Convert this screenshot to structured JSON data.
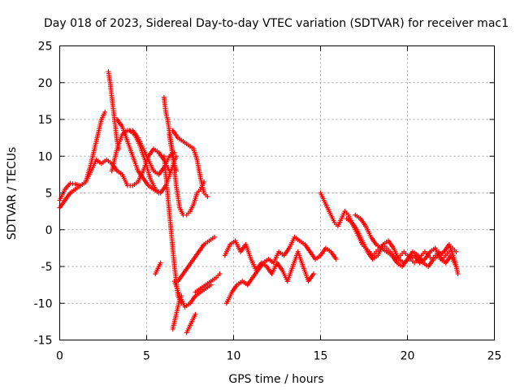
{
  "chart_data": {
    "type": "scatter",
    "title": "Day 018 of 2023, Sidereal Day-to-day VTEC variation (SDTVAR) for receiver mac1",
    "xlabel": "GPS time / hours",
    "ylabel": "SDTVAR / TECUs",
    "xlim": [
      0,
      25
    ],
    "ylim": [
      -15,
      25
    ],
    "x_ticks": [
      0,
      5,
      10,
      15,
      20,
      25
    ],
    "y_ticks": [
      -15,
      -10,
      -5,
      0,
      5,
      10,
      15,
      20,
      25
    ],
    "x_tick_labels": [
      "0",
      "5",
      "10",
      "15",
      "20",
      "25"
    ],
    "y_tick_labels": [
      "-15",
      "-10",
      "-5",
      "0",
      "5",
      "10",
      "15",
      "20",
      "25"
    ],
    "grid": true,
    "marker": "+",
    "color": "#ff0000",
    "series": [
      {
        "name": "trace-1",
        "x": [
          0.0,
          0.3,
          0.6,
          0.9,
          1.2,
          1.5,
          1.8,
          2.1,
          2.4,
          2.7,
          3.0,
          3.3,
          3.6,
          3.9,
          4.2,
          4.5,
          4.8,
          5.1,
          5.4,
          5.7,
          6.0,
          6.3
        ],
        "y": [
          4.0,
          5.5,
          6.3,
          6.2,
          6.0,
          6.5,
          8.0,
          9.5,
          9.0,
          9.5,
          9.0,
          8.0,
          7.5,
          6.0,
          6.0,
          6.5,
          8.0,
          10.0,
          11.0,
          10.5,
          9.5,
          8.0
        ]
      },
      {
        "name": "trace-2",
        "x": [
          0.0,
          0.3,
          0.6,
          0.9,
          1.2,
          1.5,
          1.8,
          2.1,
          2.4,
          2.6
        ],
        "y": [
          3.0,
          4.0,
          5.0,
          5.5,
          6.0,
          6.5,
          9.0,
          12.0,
          15.0,
          16.0
        ]
      },
      {
        "name": "trace-3",
        "x": [
          2.8,
          2.9,
          3.0,
          3.1,
          3.2,
          3.3,
          3.4
        ],
        "y": [
          21.5,
          20.0,
          18.0,
          16.0,
          14.0,
          12.0,
          11.0
        ]
      },
      {
        "name": "trace-4",
        "x": [
          3.0,
          3.3,
          3.6,
          3.9,
          4.2,
          4.5,
          4.8,
          5.1,
          5.4,
          5.7,
          6.0,
          6.3,
          6.6
        ],
        "y": [
          8.0,
          11.0,
          13.0,
          13.5,
          13.5,
          12.5,
          11.0,
          9.5,
          8.0,
          7.5,
          8.5,
          10.0,
          10.5
        ]
      },
      {
        "name": "trace-5",
        "x": [
          3.3,
          3.6,
          3.9,
          4.2,
          4.5,
          4.8,
          5.1,
          5.4,
          5.7
        ],
        "y": [
          15.0,
          14.0,
          12.0,
          10.0,
          8.0,
          7.0,
          6.0,
          5.5,
          5.0
        ]
      },
      {
        "name": "trace-6",
        "x": [
          4.0,
          4.3,
          4.6,
          4.9,
          5.2,
          5.5,
          5.8,
          6.1,
          6.4,
          6.7
        ],
        "y": [
          13.5,
          13.0,
          11.5,
          9.5,
          7.0,
          5.5,
          5.0,
          6.0,
          8.0,
          10.0
        ]
      },
      {
        "name": "trace-7",
        "x": [
          6.0,
          6.1,
          6.2,
          6.3,
          6.4,
          6.5,
          6.6,
          6.7
        ],
        "y": [
          18.0,
          16.0,
          15.0,
          13.5,
          12.0,
          10.5,
          9.0,
          8.0
        ]
      },
      {
        "name": "trace-8",
        "x": [
          6.3,
          6.5,
          6.7,
          6.9,
          7.1,
          7.3,
          7.5,
          7.7,
          7.9,
          8.1,
          8.3
        ],
        "y": [
          13.0,
          10.0,
          6.0,
          3.0,
          2.0,
          2.0,
          2.5,
          3.5,
          5.0,
          5.5,
          6.5
        ]
      },
      {
        "name": "trace-9",
        "x": [
          6.5,
          6.8,
          7.1,
          7.4,
          7.7,
          7.9,
          8.1,
          8.3,
          8.5
        ],
        "y": [
          13.5,
          12.5,
          12.0,
          11.5,
          11.0,
          9.5,
          7.0,
          5.0,
          4.5
        ]
      },
      {
        "name": "trace-10",
        "x": [
          6.0,
          6.2,
          6.4,
          6.6,
          6.8,
          7.0
        ],
        "y": [
          10.0,
          5.0,
          0.0,
          -5.0,
          -9.0,
          -10.0
        ]
      },
      {
        "name": "trace-11",
        "x": [
          6.5,
          6.6,
          6.7,
          6.8,
          6.9,
          7.0
        ],
        "y": [
          -13.5,
          -12.5,
          -11.5,
          -10.5,
          -9.5,
          -9.0
        ]
      },
      {
        "name": "trace-12",
        "x": [
          7.3,
          7.4,
          7.5,
          7.6,
          7.7,
          7.8
        ],
        "y": [
          -14.0,
          -13.5,
          -13.0,
          -12.5,
          -12.0,
          -11.5
        ]
      },
      {
        "name": "trace-13",
        "x": [
          5.5,
          5.6,
          5.7,
          5.8
        ],
        "y": [
          -6.0,
          -5.5,
          -5.0,
          -4.5
        ]
      },
      {
        "name": "trace-14",
        "x": [
          6.6,
          6.9,
          7.2,
          7.5,
          7.8,
          8.1,
          8.4,
          8.7
        ],
        "y": [
          -7.0,
          -9.0,
          -10.5,
          -10.0,
          -9.0,
          -8.5,
          -8.0,
          -7.5
        ]
      },
      {
        "name": "trace-15",
        "x": [
          6.8,
          7.1,
          7.4,
          7.7,
          8.0,
          8.3,
          8.6,
          8.9
        ],
        "y": [
          -7.0,
          -6.0,
          -5.0,
          -4.0,
          -3.0,
          -2.0,
          -1.5,
          -1.0
        ]
      },
      {
        "name": "trace-16",
        "x": [
          7.8,
          8.1,
          8.4,
          8.7,
          9.0,
          9.2
        ],
        "y": [
          -8.5,
          -8.0,
          -7.5,
          -7.0,
          -6.5,
          -6.0
        ]
      },
      {
        "name": "trace-17",
        "x": [
          9.6,
          9.9,
          10.2,
          10.5,
          10.8,
          11.1,
          11.4,
          11.7,
          12.0,
          12.3,
          12.6,
          12.9,
          13.2,
          13.5,
          13.8,
          14.1,
          14.4,
          14.7,
          15.0,
          15.3,
          15.6,
          15.9
        ],
        "y": [
          -10.0,
          -8.5,
          -7.5,
          -7.0,
          -7.5,
          -6.5,
          -5.5,
          -4.5,
          -4.0,
          -4.5,
          -3.0,
          -3.5,
          -2.5,
          -1.0,
          -1.5,
          -2.0,
          -3.0,
          -4.0,
          -3.5,
          -2.5,
          -3.0,
          -4.0
        ]
      },
      {
        "name": "trace-18",
        "x": [
          9.5,
          9.8,
          10.1,
          10.4,
          10.7,
          11.0,
          11.3,
          11.6,
          11.9,
          12.2,
          12.5,
          12.8,
          13.1,
          13.4,
          13.7,
          14.0,
          14.3,
          14.6
        ],
        "y": [
          -3.5,
          -2.0,
          -1.5,
          -3.0,
          -2.0,
          -4.0,
          -5.5,
          -4.5,
          -5.0,
          -6.0,
          -4.5,
          -5.5,
          -7.0,
          -5.0,
          -3.0,
          -5.0,
          -7.0,
          -6.0
        ]
      },
      {
        "name": "trace-19",
        "x": [
          15.0,
          15.2,
          15.4,
          15.6,
          15.8,
          16.0,
          16.2,
          16.4,
          16.6,
          16.8,
          17.0,
          17.2,
          17.4,
          17.6,
          17.8,
          18.0,
          18.2,
          18.4,
          18.6,
          18.8,
          19.0,
          19.2,
          19.4,
          19.6,
          19.8,
          20.0,
          20.2,
          20.4,
          20.6,
          20.8,
          21.0,
          21.2,
          21.4,
          21.6,
          21.8,
          22.0,
          22.2,
          22.4,
          22.6,
          22.8
        ],
        "y": [
          5.0,
          4.0,
          3.0,
          2.0,
          1.0,
          0.5,
          1.5,
          2.5,
          2.0,
          1.0,
          0.0,
          -1.0,
          -2.0,
          -2.5,
          -3.0,
          -3.5,
          -3.0,
          -2.5,
          -2.0,
          -2.5,
          -3.0,
          -3.5,
          -4.0,
          -3.5,
          -3.0,
          -3.5,
          -4.0,
          -4.5,
          -4.0,
          -3.5,
          -3.0,
          -3.5,
          -4.0,
          -3.5,
          -3.0,
          -4.0,
          -3.5,
          -3.0,
          -2.5,
          -3.0
        ]
      },
      {
        "name": "trace-20",
        "x": [
          16.5,
          16.8,
          17.1,
          17.4,
          17.7,
          18.0,
          18.3,
          18.6,
          18.9,
          19.2,
          19.5,
          19.8,
          20.1,
          20.4,
          20.7,
          21.0,
          21.3,
          21.6,
          21.9,
          22.2,
          22.5,
          22.8
        ],
        "y": [
          1.5,
          1.0,
          0.0,
          -1.5,
          -3.0,
          -4.0,
          -3.5,
          -2.0,
          -1.5,
          -2.5,
          -4.0,
          -4.5,
          -4.0,
          -3.5,
          -4.5,
          -4.0,
          -3.0,
          -2.5,
          -4.0,
          -4.5,
          -3.5,
          -5.0
        ]
      },
      {
        "name": "trace-21",
        "x": [
          17.0,
          17.3,
          17.6,
          17.9,
          18.2,
          18.5,
          18.8,
          19.1,
          19.4,
          19.7,
          20.0,
          20.3,
          20.6,
          20.9,
          21.2,
          21.5,
          21.8,
          22.1,
          22.4,
          22.7,
          22.9
        ],
        "y": [
          2.0,
          1.5,
          0.5,
          -1.0,
          -2.0,
          -2.5,
          -3.0,
          -3.5,
          -4.5,
          -5.0,
          -4.0,
          -3.0,
          -3.5,
          -4.5,
          -5.0,
          -4.0,
          -3.5,
          -3.0,
          -2.0,
          -4.0,
          -6.0
        ]
      }
    ]
  }
}
